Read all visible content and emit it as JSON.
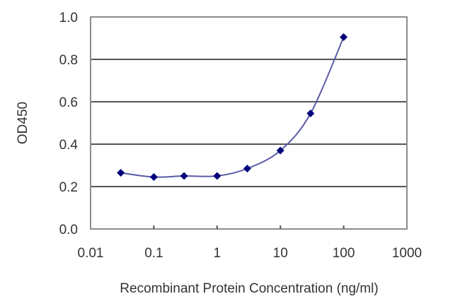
{
  "chart_data": {
    "type": "line",
    "title": "",
    "xlabel": "Recombinant Protein Concentration (ng/ml)",
    "ylabel": "OD450",
    "xscale": "log",
    "xlim": [
      0.01,
      1000
    ],
    "ylim": [
      0.0,
      1.0
    ],
    "x_ticks": [
      "0.01",
      "0.1",
      "1",
      "10",
      "100",
      "1000"
    ],
    "y_ticks": [
      "0.0",
      "0.2",
      "0.4",
      "0.6",
      "0.8",
      "1.0"
    ],
    "grid": "horizontal",
    "legend": null,
    "series": [
      {
        "name": "OD450",
        "color": "#00007a",
        "line_color": "#5a5aa8",
        "marker": "diamond",
        "x": [
          0.03,
          0.1,
          0.3,
          1,
          3,
          10,
          30,
          100
        ],
        "y": [
          0.265,
          0.245,
          0.25,
          0.25,
          0.285,
          0.37,
          0.545,
          0.905
        ]
      }
    ]
  }
}
